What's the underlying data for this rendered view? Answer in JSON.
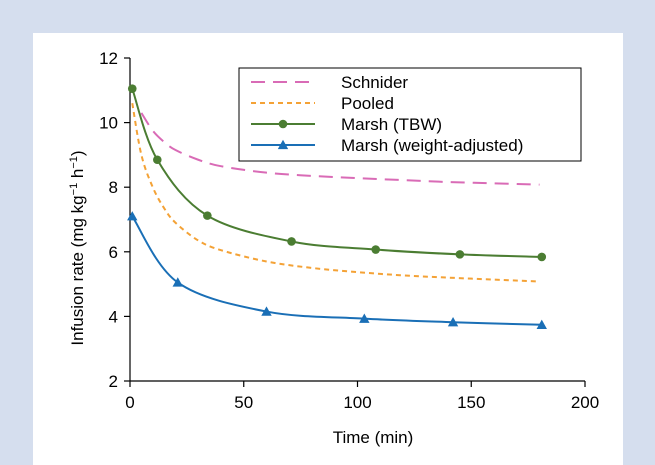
{
  "chart_data": {
    "type": "line",
    "title": "",
    "xlabel": "Time (min)",
    "ylabel": "Infusion rate (mg kg−1 h−1)",
    "xlim": [
      0,
      200
    ],
    "ylim": [
      2,
      12
    ],
    "xticks": [
      "0",
      "50",
      "100",
      "150",
      "200"
    ],
    "yticks": [
      "2",
      "4",
      "6",
      "8",
      "10",
      "12"
    ],
    "grid": false,
    "legend": "top-right",
    "series": [
      {
        "name": "Schnider",
        "style": "dashed",
        "color": "#d96bb6",
        "x": [
          5,
          10,
          15,
          20,
          30,
          40,
          60,
          80,
          100,
          120,
          140,
          160,
          180
        ],
        "y": [
          10.3,
          9.75,
          9.4,
          9.15,
          8.85,
          8.65,
          8.45,
          8.35,
          8.28,
          8.22,
          8.16,
          8.12,
          8.08
        ],
        "markers": false
      },
      {
        "name": "Pooled",
        "style": "dotted",
        "color": "#f4a236",
        "x": [
          1,
          5,
          10,
          15,
          20,
          30,
          40,
          60,
          80,
          100,
          120,
          140,
          160,
          180
        ],
        "y": [
          10.6,
          9.0,
          8.0,
          7.35,
          6.9,
          6.35,
          6.05,
          5.7,
          5.5,
          5.37,
          5.27,
          5.2,
          5.14,
          5.08
        ],
        "markers": false
      },
      {
        "name": "Marsh (TBW)",
        "style": "solid",
        "color": "#4b7d32",
        "marker": "circle",
        "x": [
          1,
          12,
          34,
          71,
          108,
          145,
          181
        ],
        "y": [
          11.05,
          8.85,
          7.12,
          6.32,
          6.07,
          5.92,
          5.84
        ],
        "markers": true
      },
      {
        "name": "Marsh (weight-adjusted)",
        "style": "solid",
        "color": "#1a6fb6",
        "marker": "triangle",
        "x": [
          1,
          21,
          60,
          103,
          142,
          181
        ],
        "y": [
          7.1,
          5.05,
          4.15,
          3.93,
          3.82,
          3.74
        ],
        "markers": true
      }
    ]
  }
}
